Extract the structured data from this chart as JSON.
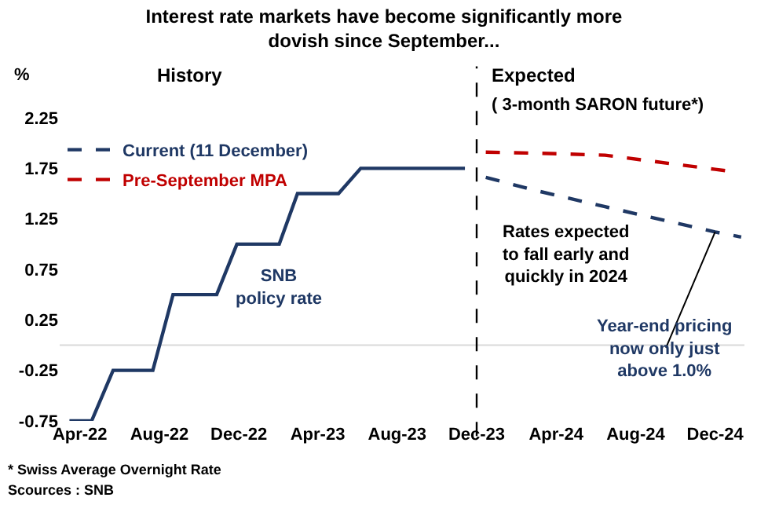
{
  "chart_data": {
    "type": "line",
    "title": "Interest rate markets have become significantly more\ndovish since September...",
    "ylabel": "%",
    "xlim": [
      "2022-03-01",
      "2025-01-15"
    ],
    "ylim": [
      -0.75,
      2.25
    ],
    "xticks": [
      {
        "value": "2022-04-01",
        "label": "Apr-22"
      },
      {
        "value": "2022-08-01",
        "label": "Aug-22"
      },
      {
        "value": "2022-12-01",
        "label": "Dec-22"
      },
      {
        "value": "2023-04-01",
        "label": "Apr-23"
      },
      {
        "value": "2023-08-01",
        "label": "Aug-23"
      },
      {
        "value": "2023-12-01",
        "label": "Dec-23"
      },
      {
        "value": "2024-04-01",
        "label": "Apr-24"
      },
      {
        "value": "2024-08-01",
        "label": "Aug-24"
      },
      {
        "value": "2024-12-01",
        "label": "Dec-24"
      }
    ],
    "yticks": [
      -0.75,
      -0.25,
      0.25,
      0.75,
      1.25,
      1.75,
      2.25
    ],
    "grid": false,
    "legend": "top left",
    "series": [
      {
        "color": "#1f3864",
        "line_style": "solid",
        "x": [
          "2022-03-16",
          "2022-04-19",
          "2022-05-22",
          "2022-07-22",
          "2022-08-22",
          "2022-10-28",
          "2022-11-28",
          "2023-02-01",
          "2023-03-01",
          "2023-05-03",
          "2023-06-06",
          "2023-11-13"
        ],
        "values": [
          -0.75,
          -0.75,
          -0.25,
          -0.25,
          0.5,
          0.5,
          1.0,
          1.0,
          1.5,
          1.5,
          1.75,
          1.75
        ]
      },
      {
        "name": "Current (11 December)",
        "color": "#1f3864",
        "line_style": "dashed",
        "x": [
          "2023-12-15",
          "2024-03-01",
          "2024-06-15",
          "2024-12-01",
          "2025-01-10"
        ],
        "values": [
          1.66,
          1.53,
          1.37,
          1.12,
          1.07
        ]
      },
      {
        "name": "Pre-September MPA",
        "color": "#c00000",
        "line_style": "dashed",
        "x": [
          "2023-12-15",
          "2024-03-01",
          "2024-06-15",
          "2024-12-01",
          "2024-12-25"
        ],
        "values": [
          1.91,
          1.9,
          1.88,
          1.74,
          1.72
        ]
      }
    ],
    "ref_lines": [
      {
        "axis": "y",
        "value": 0,
        "color": "#d9d9d9",
        "line_style": "solid"
      },
      {
        "axis": "x",
        "value": "2023-12-01",
        "color": "#000000",
        "line_style": "dashed"
      }
    ],
    "annotations": [
      "History",
      "Expected",
      "( 3-month SARON future*)",
      "SNB\npolicy rate",
      "Rates expected\nto fall early and\nquickly in 2024",
      {
        "text": "Year-end pricing\nnow only just\nabove 1.0%",
        "x": "2024-09-15",
        "y": -0.05
      },
      "* Swiss Average Overnight Rate",
      "Scources : SNB"
    ]
  }
}
